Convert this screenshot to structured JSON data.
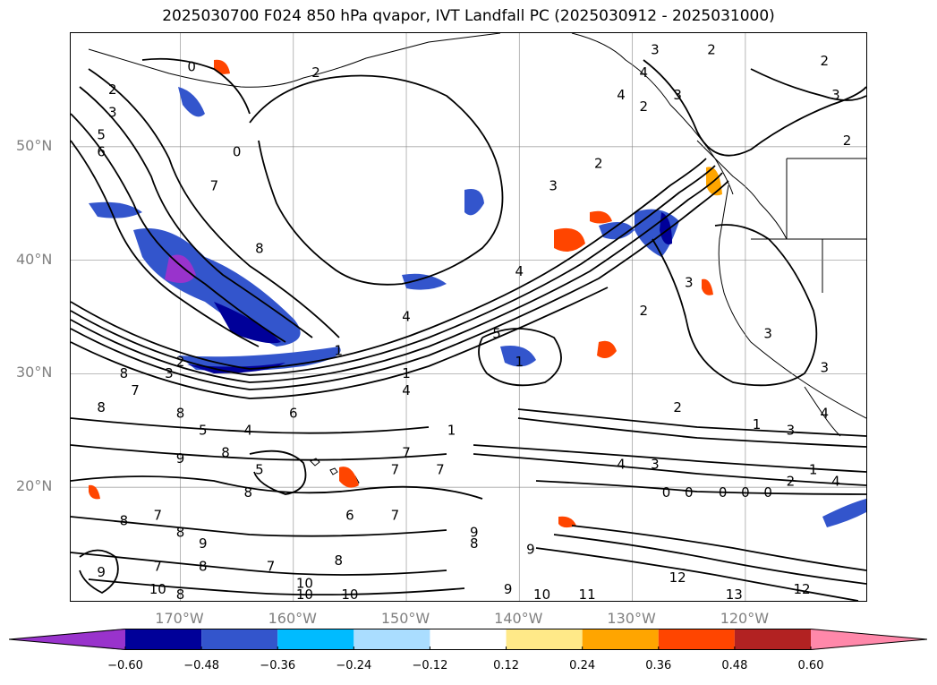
{
  "title": "2025030700 F024 850 hPa qvapor, IVT Landfall PC (2025030912 - 2025031000)",
  "latitude_labels": [
    {
      "text": "50°N",
      "value": 50
    },
    {
      "text": "40°N",
      "value": 40
    },
    {
      "text": "30°N",
      "value": 30
    },
    {
      "text": "20°N",
      "value": 20
    }
  ],
  "longitude_labels": [
    {
      "text": "170°W",
      "value": -170
    },
    {
      "text": "160°W",
      "value": -160
    },
    {
      "text": "150°W",
      "value": -150
    },
    {
      "text": "140°W",
      "value": -140
    },
    {
      "text": "130°W",
      "value": -130
    },
    {
      "text": "120°W",
      "value": -120
    }
  ],
  "colorbar": {
    "extend": "both",
    "ticks": [
      "−0.60",
      "−0.48",
      "−0.36",
      "−0.24",
      "−0.12",
      "0.12",
      "0.24",
      "0.36",
      "0.48",
      "0.60"
    ],
    "colors": [
      "#9933cc",
      "#000099",
      "#3355cc",
      "#00bbff",
      "#aaddff",
      "#ffffff",
      "#ffe988",
      "#ffa500",
      "#ff4500",
      "#b22222",
      "#ff88aa"
    ]
  },
  "contour_labels": [
    {
      "text": "0",
      "lon": -169,
      "lat": 57
    },
    {
      "text": "2",
      "lon": -176,
      "lat": 55
    },
    {
      "text": "3",
      "lon": -176,
      "lat": 53
    },
    {
      "text": "5",
      "lon": -177,
      "lat": 51
    },
    {
      "text": "6",
      "lon": -177,
      "lat": 49.5
    },
    {
      "text": "7",
      "lon": -167,
      "lat": 46.5
    },
    {
      "text": "8",
      "lon": -163,
      "lat": 41
    },
    {
      "text": "0",
      "lon": -165,
      "lat": 49.5
    },
    {
      "text": "2",
      "lon": -158,
      "lat": 56.5
    },
    {
      "text": "3",
      "lon": -128,
      "lat": 58.5
    },
    {
      "text": "2",
      "lon": -123,
      "lat": 58.5
    },
    {
      "text": "4",
      "lon": -129,
      "lat": 56.5
    },
    {
      "text": "3",
      "lon": -126,
      "lat": 54.5
    },
    {
      "text": "4",
      "lon": -131,
      "lat": 54.5
    },
    {
      "text": "2",
      "lon": -129,
      "lat": 53.5
    },
    {
      "text": "2",
      "lon": -113,
      "lat": 57.5
    },
    {
      "text": "3",
      "lon": -112,
      "lat": 54.5
    },
    {
      "text": "2",
      "lon": -111,
      "lat": 50.5
    },
    {
      "text": "2",
      "lon": -133,
      "lat": 48.5
    },
    {
      "text": "3",
      "lon": -137,
      "lat": 46.5
    },
    {
      "text": "4",
      "lon": -140,
      "lat": 39
    },
    {
      "text": "5",
      "lon": -142,
      "lat": 33.5
    },
    {
      "text": "2",
      "lon": -129,
      "lat": 35.5
    },
    {
      "text": "3",
      "lon": -125,
      "lat": 38
    },
    {
      "text": "4",
      "lon": -150,
      "lat": 35
    },
    {
      "text": "1",
      "lon": -156,
      "lat": 32
    },
    {
      "text": "2",
      "lon": -170,
      "lat": 31
    },
    {
      "text": "3",
      "lon": -171,
      "lat": 30
    },
    {
      "text": "1",
      "lon": -150,
      "lat": 30
    },
    {
      "text": "4",
      "lon": -150,
      "lat": 28.5
    },
    {
      "text": "1",
      "lon": -140,
      "lat": 31
    },
    {
      "text": "2",
      "lon": -126,
      "lat": 27
    },
    {
      "text": "1",
      "lon": -119,
      "lat": 25.5
    },
    {
      "text": "3",
      "lon": -116,
      "lat": 25
    },
    {
      "text": "4",
      "lon": -131,
      "lat": 22
    },
    {
      "text": "3",
      "lon": -128,
      "lat": 22
    },
    {
      "text": "8",
      "lon": -175,
      "lat": 30
    },
    {
      "text": "7",
      "lon": -174,
      "lat": 28.5
    },
    {
      "text": "8",
      "lon": -177,
      "lat": 27
    },
    {
      "text": "8",
      "lon": -170,
      "lat": 26.5
    },
    {
      "text": "6",
      "lon": -160,
      "lat": 26.5
    },
    {
      "text": "5",
      "lon": -168,
      "lat": 25
    },
    {
      "text": "4",
      "lon": -164,
      "lat": 25
    },
    {
      "text": "9",
      "lon": -170,
      "lat": 22.5
    },
    {
      "text": "8",
      "lon": -166,
      "lat": 23
    },
    {
      "text": "5",
      "lon": -163,
      "lat": 21.5
    },
    {
      "text": "7",
      "lon": -150,
      "lat": 23
    },
    {
      "text": "7",
      "lon": -151,
      "lat": 21.5
    },
    {
      "text": "7",
      "lon": -147,
      "lat": 21.5
    },
    {
      "text": "1",
      "lon": -146,
      "lat": 25
    },
    {
      "text": "8",
      "lon": -164,
      "lat": 19.5
    },
    {
      "text": "6",
      "lon": -155,
      "lat": 17.5
    },
    {
      "text": "7",
      "lon": -151,
      "lat": 17.5
    },
    {
      "text": "8",
      "lon": -175,
      "lat": 17
    },
    {
      "text": "7",
      "lon": -172,
      "lat": 17.5
    },
    {
      "text": "8",
      "lon": -170,
      "lat": 16
    },
    {
      "text": "9",
      "lon": -168,
      "lat": 15
    },
    {
      "text": "9",
      "lon": -144,
      "lat": 16
    },
    {
      "text": "8",
      "lon": -144,
      "lat": 15
    },
    {
      "text": "9",
      "lon": -139,
      "lat": 14.5
    },
    {
      "text": "8",
      "lon": -156,
      "lat": 13.5
    },
    {
      "text": "7",
      "lon": -162,
      "lat": 13
    },
    {
      "text": "8",
      "lon": -168,
      "lat": 13
    },
    {
      "text": "7",
      "lon": -172,
      "lat": 13
    },
    {
      "text": "9",
      "lon": -177,
      "lat": 12.5
    },
    {
      "text": "10",
      "lon": -172,
      "lat": 11
    },
    {
      "text": "8",
      "lon": -170,
      "lat": 10.5
    },
    {
      "text": "10",
      "lon": -159,
      "lat": 11.5
    },
    {
      "text": "10",
      "lon": -159,
      "lat": 10.5
    },
    {
      "text": "10",
      "lon": -155,
      "lat": 10.5
    },
    {
      "text": "9",
      "lon": -141,
      "lat": 11
    },
    {
      "text": "10",
      "lon": -138,
      "lat": 10.5
    },
    {
      "text": "11",
      "lon": -134,
      "lat": 10.5
    },
    {
      "text": "12",
      "lon": -126,
      "lat": 12
    },
    {
      "text": "12",
      "lon": -115,
      "lat": 11
    },
    {
      "text": "13",
      "lon": -121,
      "lat": 10.5
    },
    {
      "text": "0",
      "lon": -127,
      "lat": 19.5
    },
    {
      "text": "0",
      "lon": -125,
      "lat": 19.5
    },
    {
      "text": "0",
      "lon": -122,
      "lat": 19.5
    },
    {
      "text": "0",
      "lon": -120,
      "lat": 19.5
    },
    {
      "text": "0",
      "lon": -118,
      "lat": 19.5
    },
    {
      "text": "2",
      "lon": -116,
      "lat": 20.5
    },
    {
      "text": "1",
      "lon": -114,
      "lat": 21.5
    },
    {
      "text": "4",
      "lon": -112,
      "lat": 20.5
    },
    {
      "text": "3",
      "lon": -113,
      "lat": 30.5
    },
    {
      "text": "3",
      "lon": -118,
      "lat": 33.5
    },
    {
      "text": "4",
      "lon": -113,
      "lat": 26.5
    }
  ]
}
